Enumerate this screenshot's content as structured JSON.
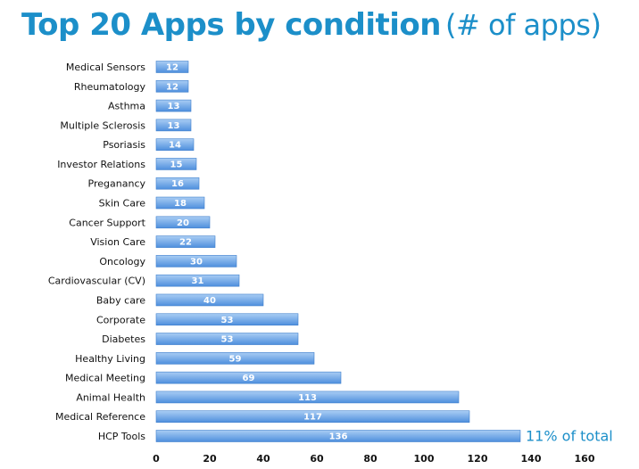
{
  "title": {
    "main": "Top 20 Apps by condition",
    "sub": "(# of apps)"
  },
  "colors": {
    "title": "#1c8fc9",
    "bar_top": "#a9cdf4",
    "bar_bottom": "#4e8fdd",
    "bar_edge": "#3f7fcc",
    "annotation": "#1c8fc9"
  },
  "chart_data": {
    "type": "bar",
    "orientation": "horizontal",
    "categories": [
      "Medical Sensors",
      "Rheumatology",
      "Asthma",
      "Multiple Sclerosis",
      "Psoriasis",
      "Investor Relations",
      "Preganancy",
      "Skin Care",
      "Cancer Support",
      "Vision Care",
      "Oncology",
      "Cardiovascular (CV)",
      "Baby care",
      "Corporate",
      "Diabetes",
      "Healthy Living",
      "Medical Meeting",
      "Animal Health",
      "Medical Reference",
      "HCP Tools"
    ],
    "values": [
      12,
      12,
      13,
      13,
      14,
      15,
      16,
      18,
      20,
      22,
      30,
      31,
      40,
      53,
      53,
      59,
      69,
      113,
      117,
      136
    ],
    "xlim": [
      0,
      160
    ],
    "xticks": [
      0,
      20,
      40,
      60,
      80,
      100,
      120,
      140,
      160
    ],
    "grid": false,
    "data_labels": true,
    "annotation": {
      "category": "HCP Tools",
      "text": "11% of total"
    }
  }
}
